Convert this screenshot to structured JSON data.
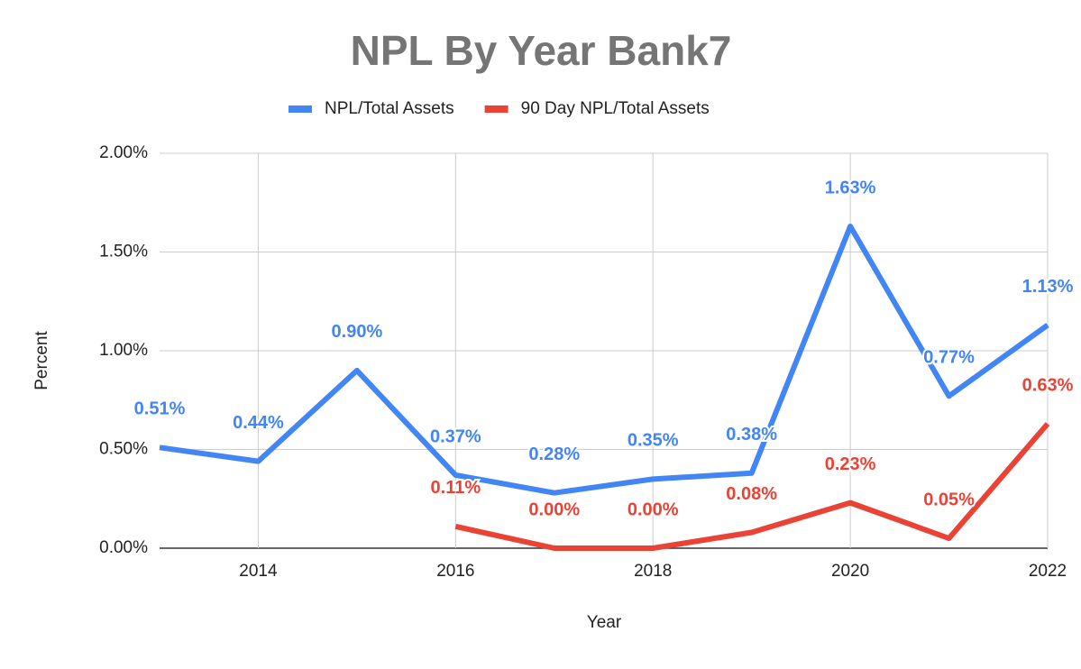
{
  "chart_data": {
    "type": "line",
    "title": "NPL By Year Bank7",
    "x_label": "Year",
    "y_label": "Percent",
    "x": [
      2013,
      2014,
      2015,
      2016,
      2017,
      2018,
      2019,
      2020,
      2021,
      2022
    ],
    "xlim": [
      2013,
      2022
    ],
    "xticks": [
      2014,
      2016,
      2018,
      2020,
      2022
    ],
    "ylim": [
      0,
      2
    ],
    "yticks": [
      {
        "value": 0,
        "label": "0.00%"
      },
      {
        "value": 0.5,
        "label": "0.50%"
      },
      {
        "value": 1,
        "label": "1.00%"
      },
      {
        "value": 1.5,
        "label": "1.50%"
      },
      {
        "value": 2,
        "label": "2.00%"
      }
    ],
    "grid": true,
    "legend": "top",
    "series": [
      {
        "name": "NPL/Total Assets",
        "color": "#4285f4",
        "values": [
          0.51,
          0.44,
          0.9,
          0.37,
          0.28,
          0.35,
          0.38,
          1.63,
          0.77,
          1.13
        ],
        "value_labels": [
          "0.51%",
          "0.44%",
          "0.90%",
          "0.37%",
          "0.28%",
          "0.35%",
          "0.38%",
          "1.63%",
          "0.77%",
          "1.13%"
        ]
      },
      {
        "name": "90 Day NPL/Total Assets",
        "color": "#ea4335",
        "values": [
          null,
          null,
          null,
          0.11,
          0,
          0,
          0.08,
          0.23,
          0.05,
          0.63
        ],
        "value_labels": [
          null,
          null,
          null,
          "0.11%",
          "0.00%",
          "0.00%",
          "0.08%",
          "0.23%",
          "0.05%",
          "0.63%"
        ]
      }
    ]
  }
}
